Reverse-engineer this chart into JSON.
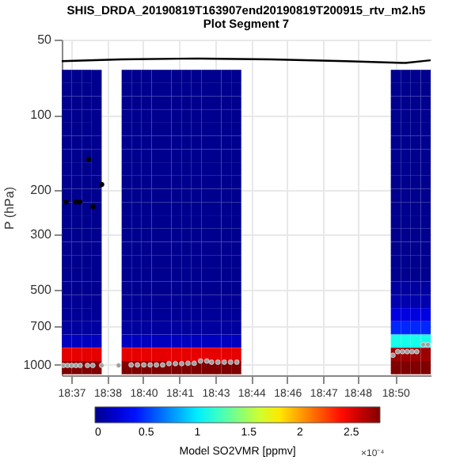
{
  "chart_data": {
    "type": "heatmap",
    "title": "SHIS_DRDA_20190819T163907end20190819T200915_rtv_m2.h5",
    "subtitle": "Plot Segment 7",
    "ylabel": "P (hPa)",
    "clabel": "Model SO2VMR [ppmv]",
    "annotations": [
      "×10⁻⁴"
    ],
    "x": [
      18.6137,
      18.6203,
      18.627,
      18.6337,
      18.6403,
      18.647,
      18.6537,
      18.6603,
      18.667,
      18.6737,
      18.6803,
      18.687,
      18.6937,
      18.7003,
      18.707,
      18.7137,
      18.7203,
      18.727,
      18.7337,
      18.7403,
      18.747,
      18.7537,
      18.7603,
      18.767,
      18.7737,
      18.7803,
      18.787,
      18.7937,
      18.8003,
      18.807,
      18.8137,
      18.8203,
      18.827,
      18.8337,
      18.8403,
      18.847,
      18.8537
    ],
    "y": [
      70.2,
      79.3,
      89.5,
      101.1,
      114.2,
      129,
      145.7,
      164.6,
      186,
      210.1,
      237.4,
      268.2,
      302.9,
      342.2,
      386.6,
      436.7,
      493.4,
      557.4,
      629.6,
      711.3,
      803.5,
      907.7,
      1025.4
    ],
    "cells": [
      [
        0,
        0,
        0,
        0,
        null,
        null,
        0,
        0,
        0,
        0,
        0,
        0,
        0,
        0,
        0,
        0,
        0,
        0,
        null,
        null,
        null,
        null,
        null,
        null,
        null,
        null,
        null,
        null,
        null,
        null,
        null,
        null,
        null,
        0,
        0,
        0,
        0
      ],
      [
        0,
        0,
        0,
        0,
        null,
        null,
        0,
        0,
        0,
        0,
        0,
        0,
        0,
        0,
        0,
        0,
        0,
        0,
        null,
        null,
        null,
        null,
        null,
        null,
        null,
        null,
        null,
        null,
        null,
        null,
        null,
        null,
        null,
        0,
        0,
        0,
        0
      ],
      [
        0,
        0,
        0,
        0,
        null,
        null,
        0,
        0,
        0,
        0,
        0,
        0,
        0,
        0,
        0,
        0,
        0,
        0,
        null,
        null,
        null,
        null,
        null,
        null,
        null,
        null,
        null,
        null,
        null,
        null,
        null,
        null,
        null,
        0,
        0,
        0,
        0
      ],
      [
        0,
        0,
        0,
        0,
        null,
        null,
        0,
        0,
        0,
        0,
        0,
        0,
        0,
        0,
        0,
        0,
        0,
        0,
        null,
        null,
        null,
        null,
        null,
        null,
        null,
        null,
        null,
        null,
        null,
        null,
        null,
        null,
        null,
        0,
        0,
        0,
        0
      ],
      [
        0,
        0,
        0,
        0,
        null,
        null,
        0,
        0,
        0,
        0,
        0,
        0,
        0,
        0,
        0,
        0,
        0,
        0,
        null,
        null,
        null,
        null,
        null,
        null,
        null,
        null,
        null,
        null,
        null,
        null,
        null,
        null,
        null,
        0,
        0,
        0,
        0
      ],
      [
        0,
        0,
        0,
        0,
        null,
        null,
        0,
        0,
        0,
        0,
        0,
        0,
        0,
        0,
        0,
        0,
        0,
        0,
        null,
        null,
        null,
        null,
        null,
        null,
        null,
        null,
        null,
        null,
        null,
        null,
        null,
        null,
        null,
        0,
        0,
        0,
        0
      ],
      [
        0,
        0,
        0,
        0,
        null,
        null,
        0,
        0,
        0,
        0,
        0,
        0,
        0,
        0,
        0,
        0,
        0,
        0,
        null,
        null,
        null,
        null,
        null,
        null,
        null,
        null,
        null,
        null,
        null,
        null,
        null,
        null,
        null,
        0,
        0,
        0,
        0
      ],
      [
        0,
        0,
        0,
        0,
        null,
        null,
        0,
        0,
        0,
        0,
        0,
        0,
        0,
        0,
        0,
        0,
        0,
        0,
        null,
        null,
        null,
        null,
        null,
        null,
        null,
        null,
        null,
        null,
        null,
        null,
        null,
        null,
        null,
        0,
        0,
        0,
        0
      ],
      [
        0,
        0,
        0,
        0,
        null,
        null,
        0,
        0,
        0,
        0,
        0,
        0,
        0,
        0,
        0,
        0,
        0,
        0,
        null,
        null,
        null,
        null,
        null,
        null,
        null,
        null,
        null,
        null,
        null,
        null,
        null,
        null,
        null,
        0,
        0,
        0,
        0
      ],
      [
        0,
        0,
        0,
        0,
        null,
        null,
        0,
        0,
        0,
        0,
        0,
        0,
        0,
        0,
        0,
        0,
        0,
        0,
        null,
        null,
        null,
        null,
        null,
        null,
        null,
        null,
        null,
        null,
        null,
        null,
        null,
        null,
        null,
        0,
        0,
        0,
        0
      ],
      [
        0,
        0,
        0,
        0,
        null,
        null,
        0,
        0,
        0,
        0,
        0,
        0,
        0,
        0,
        0,
        0,
        0,
        0,
        null,
        null,
        null,
        null,
        null,
        null,
        null,
        null,
        null,
        null,
        null,
        null,
        null,
        null,
        null,
        0,
        0,
        0,
        0
      ],
      [
        0,
        0,
        0,
        0,
        null,
        null,
        0,
        0,
        0,
        0,
        0,
        0,
        0,
        0,
        0,
        0,
        0,
        0,
        null,
        null,
        null,
        null,
        null,
        null,
        null,
        null,
        null,
        null,
        null,
        null,
        null,
        null,
        null,
        0,
        0,
        0,
        0
      ],
      [
        0,
        0,
        0,
        0,
        null,
        null,
        0,
        0,
        0,
        0,
        0,
        0,
        0,
        0,
        0,
        0,
        0,
        0,
        null,
        null,
        null,
        null,
        null,
        null,
        null,
        null,
        null,
        null,
        null,
        null,
        null,
        null,
        null,
        0,
        0,
        0,
        0
      ],
      [
        0,
        0,
        0,
        0,
        null,
        null,
        0,
        0,
        0,
        0,
        0,
        0,
        0,
        0,
        0,
        0,
        0,
        0,
        null,
        null,
        null,
        null,
        null,
        null,
        null,
        null,
        null,
        null,
        null,
        null,
        null,
        null,
        null,
        0,
        0,
        0,
        0
      ],
      [
        0,
        0,
        0,
        0,
        null,
        null,
        0,
        0,
        0,
        0,
        0,
        0,
        0,
        0,
        0,
        0,
        0,
        0,
        null,
        null,
        null,
        null,
        null,
        null,
        null,
        null,
        null,
        null,
        null,
        null,
        null,
        null,
        null,
        0,
        0,
        0,
        0
      ],
      [
        0,
        0,
        0,
        0,
        null,
        null,
        0,
        0,
        0,
        0,
        0,
        0,
        0,
        0,
        0,
        0,
        0,
        0,
        null,
        null,
        null,
        null,
        null,
        null,
        null,
        null,
        null,
        null,
        null,
        null,
        null,
        null,
        null,
        0,
        0,
        0,
        0
      ],
      [
        0,
        0,
        0,
        0,
        null,
        null,
        0,
        0,
        0,
        0,
        0,
        0,
        0,
        0,
        0,
        0,
        0,
        0,
        null,
        null,
        null,
        null,
        null,
        null,
        null,
        null,
        null,
        null,
        null,
        null,
        null,
        null,
        null,
        0.05,
        0.05,
        0.05,
        0.05
      ],
      [
        0.02,
        0.02,
        0.02,
        0.02,
        null,
        null,
        0.02,
        0.02,
        0.02,
        0.02,
        0.02,
        0.02,
        0.02,
        0.02,
        0.02,
        0.02,
        0.02,
        0.02,
        null,
        null,
        null,
        null,
        null,
        null,
        null,
        null,
        null,
        null,
        null,
        null,
        null,
        null,
        null,
        0.1,
        0.1,
        0.1,
        0.1
      ],
      [
        0.03,
        0.03,
        0.03,
        0.03,
        null,
        null,
        0.03,
        0.03,
        0.03,
        0.03,
        0.03,
        0.03,
        0.03,
        0.03,
        0.03,
        0.03,
        0.03,
        0.03,
        null,
        null,
        null,
        null,
        null,
        null,
        null,
        null,
        null,
        null,
        null,
        null,
        null,
        null,
        null,
        0.25,
        0.25,
        0.25,
        0.25
      ],
      [
        0.05,
        0.05,
        0.05,
        0.05,
        null,
        null,
        0.05,
        0.05,
        0.05,
        0.05,
        0.05,
        0.05,
        0.05,
        0.05,
        0.05,
        0.05,
        0.05,
        0.05,
        null,
        null,
        null,
        null,
        null,
        null,
        null,
        null,
        null,
        null,
        null,
        null,
        null,
        null,
        null,
        0.45,
        0.45,
        0.45,
        0.45
      ],
      [
        0.15,
        0.15,
        0.15,
        0.15,
        null,
        null,
        0.15,
        0.15,
        0.15,
        0.15,
        0.15,
        0.15,
        0.15,
        0.15,
        0.15,
        0.15,
        0.15,
        0.15,
        null,
        null,
        null,
        null,
        null,
        null,
        null,
        null,
        null,
        null,
        null,
        null,
        null,
        null,
        null,
        1.1,
        1.1,
        1.1,
        1.1
      ],
      [
        2.5,
        2.5,
        2.5,
        2.5,
        null,
        null,
        2.5,
        2.5,
        2.5,
        2.5,
        2.5,
        2.5,
        2.5,
        2.5,
        2.5,
        2.5,
        2.5,
        2.5,
        null,
        null,
        null,
        null,
        null,
        null,
        null,
        null,
        null,
        null,
        null,
        null,
        null,
        null,
        null,
        2.7,
        2.7,
        2.7,
        2.7
      ],
      [
        2.78,
        2.78,
        2.78,
        2.78,
        null,
        null,
        2.78,
        2.78,
        2.78,
        2.78,
        2.78,
        2.78,
        2.78,
        2.78,
        2.78,
        2.78,
        2.78,
        2.78,
        null,
        null,
        null,
        null,
        null,
        null,
        null,
        null,
        null,
        null,
        null,
        null,
        null,
        null,
        null,
        2.78,
        2.78,
        2.78,
        2.78
      ]
    ],
    "clim": [
      0,
      2.78
    ],
    "cticks": [
      0,
      0.5,
      1,
      1.5,
      2,
      2.5
    ],
    "series": [
      {
        "type": "line",
        "color": "#000000",
        "x": [
          18.6103,
          18.65,
          18.7,
          18.75,
          18.8,
          18.84,
          18.857
        ],
        "values": [
          61,
          60,
          59.5,
          60,
          61,
          62,
          60.5
        ]
      },
      {
        "type": "scatter",
        "marker": "circle",
        "color": "#000000",
        "x": [
          18.6132,
          18.6195,
          18.6223,
          18.6283,
          18.6312,
          18.637
        ],
        "values": [
          223,
          223,
          223,
          150.7,
          233,
          190
        ]
      },
      {
        "type": "scatter",
        "marker": "circle",
        "color": "#a0a0a0",
        "x": [
          18.6114,
          18.6142,
          18.6169,
          18.6198,
          18.6226,
          18.6275,
          18.6311,
          18.637,
          18.6483,
          18.6567,
          18.6609,
          18.6652,
          18.6694,
          18.6736,
          18.6778,
          18.682,
          18.6863,
          18.6905,
          18.6947,
          18.6989,
          18.7031,
          18.7073,
          18.7105,
          18.7147,
          18.719,
          18.7232,
          18.7274,
          18.8318,
          18.835,
          18.8382,
          18.8413,
          18.8445,
          18.8477,
          18.852,
          18.8551
        ],
        "values": [
          1005,
          1005,
          1005,
          1005,
          1005,
          1005,
          1005,
          1005,
          1005,
          1000,
          1000,
          1000,
          1000,
          1000,
          1000,
          988,
          988,
          988,
          985,
          985,
          965,
          965,
          975,
          975,
          975,
          975,
          975,
          915,
          885,
          885,
          885,
          885,
          885,
          830,
          830
        ]
      }
    ],
    "xlim": [
      18.6103,
      18.857
    ],
    "ylim": [
      1100,
      50
    ],
    "xticks": [
      {
        "value": 18.6167,
        "label": "18:37"
      },
      {
        "value": 18.6407,
        "label": "18:38"
      },
      {
        "value": 18.6648,
        "label": "18:40"
      },
      {
        "value": 18.6889,
        "label": "18:41"
      },
      {
        "value": 18.713,
        "label": "18:43"
      },
      {
        "value": 18.737,
        "label": "18:44"
      },
      {
        "value": 18.7611,
        "label": "18:46"
      },
      {
        "value": 18.7852,
        "label": "18:47"
      },
      {
        "value": 18.808,
        "label": "18:48"
      },
      {
        "value": 18.8333,
        "label": "18:50"
      }
    ],
    "yticks": [
      50,
      100,
      200,
      300,
      500,
      700,
      1000
    ],
    "log": "y",
    "grid": true
  }
}
